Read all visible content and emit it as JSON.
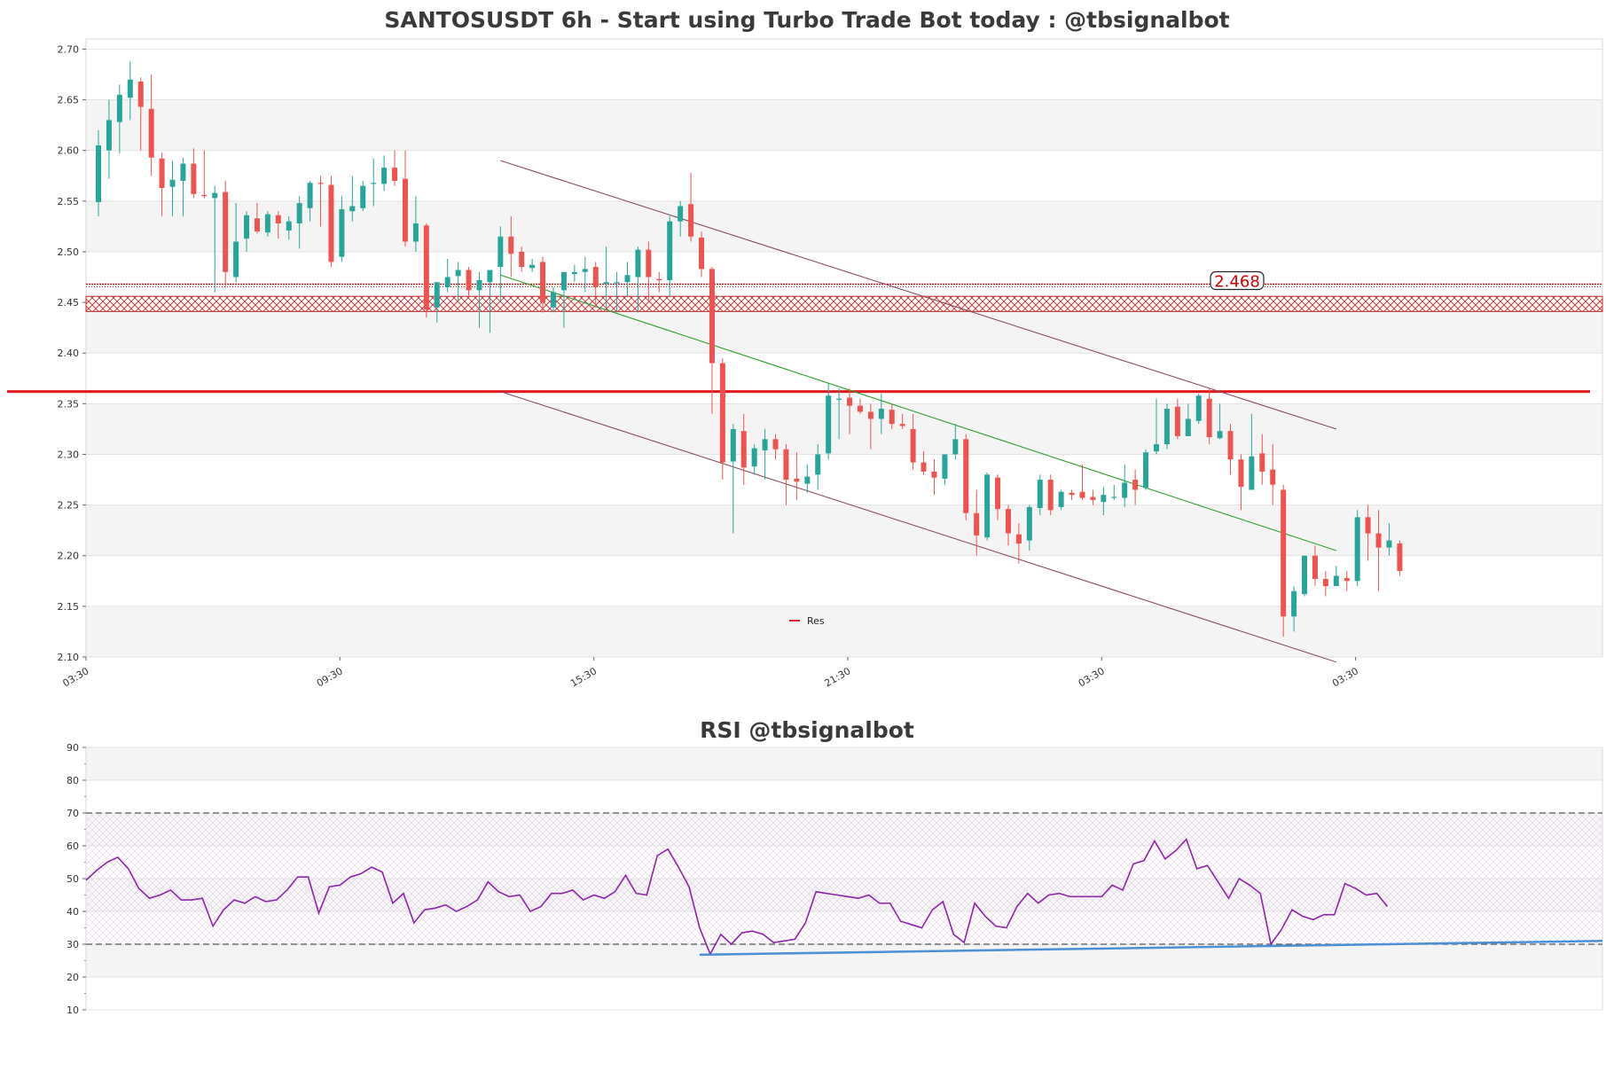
{
  "chart_data": [
    {
      "type": "candlestick",
      "title": "SANTOSUSDT 6h - Start using Turbo Trade Bot today : @tbsignalbot",
      "ylim": [
        2.1,
        2.71
      ],
      "yticks": [
        "2.10",
        "2.15",
        "2.20",
        "2.25",
        "2.30",
        "2.35",
        "2.40",
        "2.45",
        "2.50",
        "2.55",
        "2.60",
        "2.65",
        "2.70"
      ],
      "xticks": [
        "03:30",
        "09:30",
        "15:30",
        "21:30",
        "03:30",
        "03:30"
      ],
      "xtick_index": [
        0,
        24,
        48,
        72,
        96,
        120
      ],
      "legend": [
        {
          "name": "Res",
          "color": "#d62728"
        }
      ],
      "price_label": "2.468",
      "resistance_line": 2.362,
      "resistance_zone": [
        2.441,
        2.468
      ],
      "channel_upper": {
        "from": [
          38,
          2.59
        ],
        "to": [
          117,
          2.325
        ]
      },
      "channel_lower": {
        "from": [
          38,
          2.362
        ],
        "to": [
          117,
          2.095
        ]
      },
      "trend_line": {
        "from": [
          38,
          2.477
        ],
        "to": [
          117,
          2.205
        ]
      },
      "colors": {
        "up": "#26a69a",
        "down": "#ef5350",
        "channel": "#8b4a62",
        "trend": "#2ca02c",
        "resistance": "#e31a1c"
      },
      "ohlc": [
        [
          2.549,
          2.62,
          2.535,
          2.605
        ],
        [
          2.6,
          2.65,
          2.572,
          2.63
        ],
        [
          2.628,
          2.665,
          2.597,
          2.655
        ],
        [
          2.652,
          2.688,
          2.63,
          2.67
        ],
        [
          2.668,
          2.672,
          2.6,
          2.643
        ],
        [
          2.641,
          2.675,
          2.575,
          2.593
        ],
        [
          2.592,
          2.598,
          2.535,
          2.563
        ],
        [
          2.564,
          2.59,
          2.535,
          2.571
        ],
        [
          2.57,
          2.593,
          2.535,
          2.587
        ],
        [
          2.587,
          2.602,
          2.553,
          2.557
        ],
        [
          2.556,
          2.6,
          2.553,
          2.555
        ],
        [
          2.553,
          2.565,
          2.46,
          2.558
        ],
        [
          2.559,
          2.57,
          2.465,
          2.48
        ],
        [
          2.475,
          2.548,
          2.47,
          2.51
        ],
        [
          2.513,
          2.54,
          2.5,
          2.536
        ],
        [
          2.533,
          2.548,
          2.518,
          2.52
        ],
        [
          2.519,
          2.54,
          2.515,
          2.537
        ],
        [
          2.536,
          2.54,
          2.513,
          2.528
        ],
        [
          2.521,
          2.535,
          2.512,
          2.53
        ],
        [
          2.528,
          2.555,
          2.503,
          2.548
        ],
        [
          2.543,
          2.57,
          2.53,
          2.568
        ],
        [
          2.568,
          2.575,
          2.525,
          2.567
        ],
        [
          2.566,
          2.575,
          2.485,
          2.49
        ],
        [
          2.495,
          2.555,
          2.49,
          2.542
        ],
        [
          2.54,
          2.575,
          2.53,
          2.545
        ],
        [
          2.543,
          2.57,
          2.54,
          2.565
        ],
        [
          2.567,
          2.592,
          2.545,
          2.568
        ],
        [
          2.567,
          2.595,
          2.56,
          2.583
        ],
        [
          2.583,
          2.6,
          2.565,
          2.57
        ],
        [
          2.572,
          2.6,
          2.505,
          2.51
        ],
        [
          2.51,
          2.555,
          2.5,
          2.528
        ],
        [
          2.526,
          2.528,
          2.435,
          2.443
        ],
        [
          2.445,
          2.47,
          2.43,
          2.47
        ],
        [
          2.465,
          2.493,
          2.46,
          2.475
        ],
        [
          2.476,
          2.49,
          2.45,
          2.482
        ],
        [
          2.482,
          2.485,
          2.455,
          2.462
        ],
        [
          2.462,
          2.48,
          2.425,
          2.472
        ],
        [
          2.47,
          2.48,
          2.42,
          2.482
        ],
        [
          2.485,
          2.525,
          2.45,
          2.515
        ],
        [
          2.515,
          2.535,
          2.475,
          2.498
        ],
        [
          2.5,
          2.505,
          2.48,
          2.485
        ],
        [
          2.484,
          2.493,
          2.48,
          2.487
        ],
        [
          2.49,
          2.495,
          2.44,
          2.45
        ],
        [
          2.445,
          2.465,
          2.44,
          2.46
        ],
        [
          2.462,
          2.48,
          2.425,
          2.48
        ],
        [
          2.478,
          2.487,
          2.47,
          2.48
        ],
        [
          2.48,
          2.495,
          2.46,
          2.483
        ],
        [
          2.485,
          2.49,
          2.445,
          2.465
        ],
        [
          2.468,
          2.505,
          2.445,
          2.47
        ],
        [
          2.47,
          2.48,
          2.44,
          2.47
        ],
        [
          2.47,
          2.49,
          2.455,
          2.477
        ],
        [
          2.475,
          2.505,
          2.44,
          2.502
        ],
        [
          2.502,
          2.51,
          2.45,
          2.475
        ],
        [
          2.473,
          2.48,
          2.46,
          2.472
        ],
        [
          2.472,
          2.535,
          2.455,
          2.53
        ],
        [
          2.53,
          2.55,
          2.515,
          2.545
        ],
        [
          2.547,
          2.578,
          2.51,
          2.515
        ],
        [
          2.514,
          2.52,
          2.475,
          2.483
        ],
        [
          2.483,
          2.485,
          2.34,
          2.39
        ],
        [
          2.39,
          2.395,
          2.275,
          2.292
        ],
        [
          2.293,
          2.33,
          2.222,
          2.325
        ],
        [
          2.323,
          2.34,
          2.27,
          2.287
        ],
        [
          2.288,
          2.31,
          2.28,
          2.306
        ],
        [
          2.304,
          2.325,
          2.275,
          2.315
        ],
        [
          2.315,
          2.32,
          2.295,
          2.305
        ],
        [
          2.305,
          2.31,
          2.25,
          2.275
        ],
        [
          2.276,
          2.302,
          2.255,
          2.273
        ],
        [
          2.271,
          2.29,
          2.262,
          2.278
        ],
        [
          2.28,
          2.31,
          2.265,
          2.3
        ],
        [
          2.301,
          2.37,
          2.295,
          2.358
        ],
        [
          2.355,
          2.365,
          2.315,
          2.355
        ],
        [
          2.356,
          2.365,
          2.32,
          2.348
        ],
        [
          2.348,
          2.355,
          2.34,
          2.342
        ],
        [
          2.342,
          2.35,
          2.305,
          2.335
        ],
        [
          2.335,
          2.36,
          2.32,
          2.345
        ],
        [
          2.344,
          2.35,
          2.325,
          2.33
        ],
        [
          2.33,
          2.34,
          2.325,
          2.328
        ],
        [
          2.325,
          2.34,
          2.285,
          2.292
        ],
        [
          2.292,
          2.303,
          2.28,
          2.283
        ],
        [
          2.283,
          2.295,
          2.26,
          2.277
        ],
        [
          2.276,
          2.3,
          2.27,
          2.3
        ],
        [
          2.3,
          2.33,
          2.295,
          2.315
        ],
        [
          2.315,
          2.32,
          2.235,
          2.242
        ],
        [
          2.242,
          2.265,
          2.2,
          2.22
        ],
        [
          2.218,
          2.282,
          2.215,
          2.28
        ],
        [
          2.277,
          2.28,
          2.235,
          2.246
        ],
        [
          2.246,
          2.25,
          2.21,
          2.222
        ],
        [
          2.221,
          2.232,
          2.192,
          2.212
        ],
        [
          2.215,
          2.25,
          2.205,
          2.248
        ],
        [
          2.247,
          2.28,
          2.24,
          2.275
        ],
        [
          2.275,
          2.28,
          2.24,
          2.245
        ],
        [
          2.248,
          2.265,
          2.245,
          2.263
        ],
        [
          2.262,
          2.265,
          2.255,
          2.26
        ],
        [
          2.263,
          2.29,
          2.255,
          2.257
        ],
        [
          2.258,
          2.265,
          2.25,
          2.255
        ],
        [
          2.253,
          2.268,
          2.24,
          2.26
        ],
        [
          2.258,
          2.27,
          2.255,
          2.258
        ],
        [
          2.257,
          2.29,
          2.248,
          2.272
        ],
        [
          2.275,
          2.285,
          2.25,
          2.265
        ],
        [
          2.267,
          2.305,
          2.265,
          2.302
        ],
        [
          2.303,
          2.355,
          2.3,
          2.31
        ],
        [
          2.31,
          2.35,
          2.305,
          2.345
        ],
        [
          2.347,
          2.355,
          2.315,
          2.318
        ],
        [
          2.318,
          2.35,
          2.318,
          2.335
        ],
        [
          2.333,
          2.36,
          2.33,
          2.358
        ],
        [
          2.355,
          2.365,
          2.31,
          2.317
        ],
        [
          2.316,
          2.35,
          2.315,
          2.323
        ],
        [
          2.323,
          2.33,
          2.28,
          2.295
        ],
        [
          2.295,
          2.3,
          2.245,
          2.268
        ],
        [
          2.265,
          2.34,
          2.265,
          2.298
        ],
        [
          2.301,
          2.32,
          2.27,
          2.283
        ],
        [
          2.285,
          2.31,
          2.25,
          2.27
        ],
        [
          2.265,
          2.27,
          2.12,
          2.14
        ],
        [
          2.14,
          2.17,
          2.125,
          2.165
        ],
        [
          2.162,
          2.2,
          2.16,
          2.2
        ],
        [
          2.2,
          2.21,
          2.17,
          2.177
        ],
        [
          2.177,
          2.185,
          2.16,
          2.17
        ],
        [
          2.17,
          2.19,
          2.17,
          2.18
        ],
        [
          2.178,
          2.185,
          2.165,
          2.175
        ],
        [
          2.175,
          2.245,
          2.17,
          2.238
        ],
        [
          2.238,
          2.25,
          2.195,
          2.222
        ],
        [
          2.222,
          2.245,
          2.165,
          2.208
        ],
        [
          2.208,
          2.232,
          2.2,
          2.215
        ],
        [
          2.212,
          2.215,
          2.18,
          2.185
        ]
      ]
    },
    {
      "type": "line",
      "title": "RSI @tbsignalbot",
      "ylim": [
        10,
        90
      ],
      "yticks": [
        "10",
        "20",
        "30",
        "40",
        "50",
        "60",
        "70",
        "80",
        "90"
      ],
      "levels": [
        30,
        70
      ],
      "band": [
        30,
        70
      ],
      "series": [
        {
          "name": "RSI",
          "color": "#8e24aa",
          "values": [
            49.5,
            52.5,
            55,
            56.5,
            53,
            47,
            44,
            45,
            46.5,
            43.5,
            43.5,
            44,
            35.5,
            40.5,
            43.5,
            42.5,
            44.5,
            43,
            43.5,
            46.5,
            50.5,
            50.5,
            39.5,
            47.5,
            48,
            50.5,
            51.5,
            53.5,
            52,
            42.5,
            45.5,
            36.5,
            40.5,
            41,
            42,
            40,
            41.5,
            43.5,
            49,
            46,
            44.5,
            45,
            40,
            41.5,
            45.5,
            45.5,
            46.5,
            43.5,
            45,
            44,
            46,
            51,
            45.5,
            45,
            57,
            59,
            53.5,
            47.5,
            35,
            27,
            33,
            30,
            33.5,
            34,
            33,
            30.5,
            31,
            31.5,
            36.5,
            46,
            45.5,
            45,
            44.5,
            44,
            45,
            42.5,
            42.5,
            37,
            36,
            35,
            40.5,
            43,
            33,
            30.5,
            42.5,
            38.5,
            35.5,
            35,
            41.5,
            45.5,
            42.5,
            45,
            45.5,
            44.5,
            44.5,
            44.5,
            44.5,
            48,
            46.5,
            54.5,
            55.5,
            61.5,
            56,
            58.5,
            62,
            53,
            54,
            49,
            44,
            50,
            48,
            45.5,
            30,
            34.5,
            40.5,
            38.5,
            37.5,
            39,
            39,
            48.5,
            47,
            45,
            45.5,
            41.5
          ]
        },
        {
          "name": "RSI support",
          "color": "#4a90d9",
          "from": [
            58,
            26.8
          ],
          "to": [
            122,
            31
          ]
        }
      ]
    }
  ]
}
